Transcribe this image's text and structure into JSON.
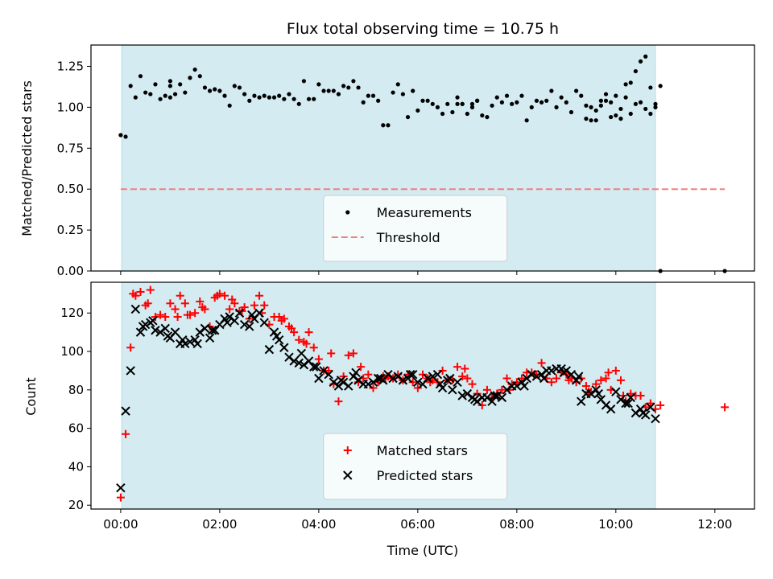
{
  "chart_data": {
    "title": "Flux total observing time = 10.75 h",
    "xlabel": "Time (UTC)",
    "x_unit": "hours UTC",
    "xlim": [
      -0.6,
      12.8
    ],
    "xticks": [
      0,
      2,
      4,
      6,
      8,
      10,
      12
    ],
    "xtick_labels": [
      "00:00",
      "02:00",
      "04:00",
      "06:00",
      "08:00",
      "10:00",
      "12:00"
    ],
    "shaded_span": [
      0.02,
      10.8
    ],
    "shade_color": "#d3ebf1",
    "panels": [
      {
        "id": "top",
        "type": "scatter",
        "ylabel": "Matched/Predicted stars",
        "ylim": [
          0.0,
          1.38
        ],
        "yticks": [
          0.0,
          0.25,
          0.5,
          0.75,
          1.0,
          1.25
        ],
        "ytick_labels": [
          "0.00",
          "0.25",
          "0.50",
          "0.75",
          "1.00",
          "1.25"
        ],
        "legend_position": "lower-center",
        "threshold": {
          "name": "Threshold",
          "value": 0.5,
          "x_range": [
            0.0,
            12.2
          ],
          "color": "#f08080",
          "style": "dashed"
        },
        "series": [
          {
            "name": "Measurements",
            "color": "#000000",
            "marker": "dot",
            "x": [
              0.0,
              0.1,
              0.2,
              0.3,
              0.4,
              0.5,
              0.6,
              0.7,
              0.8,
              0.9,
              1.0,
              1.1,
              1.2,
              1.3,
              1.4,
              1.5,
              1.6,
              1.7,
              1.8,
              1.9,
              2.0,
              2.1,
              2.2,
              2.3,
              2.4,
              2.5,
              2.6,
              2.7,
              2.8,
              2.9,
              3.0,
              3.1,
              3.2,
              3.3,
              3.4,
              3.5,
              3.6,
              3.7,
              3.8,
              3.9,
              4.0,
              4.1,
              4.2,
              4.3,
              4.4,
              4.5,
              4.6,
              4.7,
              4.8,
              4.9,
              5.0,
              5.1,
              5.2,
              5.3,
              5.4,
              5.5,
              5.6,
              5.7,
              5.8,
              5.9,
              6.0,
              6.1,
              6.2,
              6.3,
              6.4,
              6.5,
              6.6,
              6.7,
              6.8,
              6.9,
              7.0,
              7.1,
              7.2,
              7.3,
              7.4,
              7.5,
              7.6,
              7.7,
              7.8,
              7.9,
              8.0,
              8.1,
              8.2,
              8.3,
              8.4,
              8.5,
              8.6,
              8.7,
              8.8,
              8.9,
              9.0,
              9.1,
              9.2,
              9.3,
              9.4,
              9.5,
              9.6,
              9.7,
              9.8,
              9.9,
              10.0,
              10.1,
              10.2,
              10.3,
              10.4,
              10.5,
              10.6,
              10.7,
              10.8,
              10.9,
              12.2
            ],
            "y": [
              0.83,
              0.82,
              1.13,
              1.06,
              1.19,
              1.09,
              1.08,
              1.14,
              1.05,
              1.07,
              1.06,
              1.08,
              1.14,
              1.09,
              1.18,
              1.23,
              1.19,
              1.12,
              1.1,
              1.11,
              1.1,
              1.07,
              1.01,
              1.13,
              1.12,
              1.08,
              1.04,
              1.07,
              1.06,
              1.07,
              1.06,
              1.06,
              1.07,
              1.05,
              1.08,
              1.05,
              1.02,
              1.16,
              1.05,
              1.05,
              1.14,
              1.1,
              1.1,
              1.1,
              1.08,
              1.13,
              1.12,
              1.16,
              1.12,
              1.03,
              1.07,
              1.07,
              1.04,
              0.89,
              0.89,
              1.09,
              1.14,
              1.08,
              0.94,
              1.1,
              0.98,
              1.04,
              1.04,
              1.02,
              1.0,
              0.96,
              1.02,
              0.97,
              1.02,
              1.02,
              0.96,
              1.0,
              1.04,
              0.95,
              0.94,
              1.01,
              1.06,
              1.03,
              1.07,
              1.02,
              1.03,
              1.07,
              0.92,
              1.0,
              1.04,
              1.03,
              1.04,
              1.1,
              1.0,
              1.06,
              1.03,
              0.97,
              1.1,
              1.07,
              1.01,
              1.0,
              0.98,
              1.01,
              1.04,
              0.94,
              0.95,
              0.93,
              1.06,
              0.96,
              1.02,
              1.03,
              0.99,
              1.12,
              1.0,
              1.13,
              0.0
            ],
            "x_extra": [
              1.0,
              1.0,
              6.8,
              6.9,
              7.1,
              7.2,
              9.4,
              9.5,
              9.6,
              9.7,
              9.8,
              9.9,
              10.0,
              10.1,
              10.2,
              10.3,
              10.4,
              10.5,
              10.6,
              10.7,
              10.8,
              10.9
            ],
            "y_extra": [
              1.16,
              1.13,
              1.06,
              1.02,
              1.02,
              1.04,
              0.93,
              0.92,
              0.92,
              1.04,
              1.08,
              1.03,
              1.07,
              0.99,
              1.14,
              1.15,
              1.22,
              1.28,
              1.31,
              0.96,
              1.02,
              0.0
            ]
          }
        ]
      },
      {
        "id": "bottom",
        "type": "scatter",
        "ylabel": "Count",
        "ylim": [
          18,
          136
        ],
        "yticks": [
          20,
          40,
          60,
          80,
          100,
          120
        ],
        "ytick_labels": [
          "20",
          "40",
          "60",
          "80",
          "100",
          "120"
        ],
        "legend_position": "lower-center",
        "series": [
          {
            "name": "Matched stars",
            "color": "#ff0000",
            "marker": "plus",
            "x": [
              0.0,
              0.1,
              0.2,
              0.3,
              0.4,
              0.5,
              0.6,
              0.7,
              0.8,
              0.9,
              1.0,
              1.1,
              1.2,
              1.3,
              1.4,
              1.5,
              1.6,
              1.7,
              1.8,
              1.9,
              2.0,
              2.1,
              2.2,
              2.3,
              2.4,
              2.5,
              2.6,
              2.7,
              2.8,
              2.9,
              3.0,
              3.1,
              3.2,
              3.3,
              3.4,
              3.5,
              3.6,
              3.7,
              3.8,
              3.9,
              4.0,
              4.1,
              4.2,
              4.3,
              4.4,
              4.5,
              4.6,
              4.7,
              4.8,
              4.9,
              5.0,
              5.1,
              5.2,
              5.3,
              5.4,
              5.5,
              5.6,
              5.7,
              5.8,
              5.9,
              6.0,
              6.1,
              6.2,
              6.3,
              6.4,
              6.5,
              6.6,
              6.7,
              6.8,
              6.9,
              7.0,
              7.1,
              7.2,
              7.3,
              7.4,
              7.5,
              7.6,
              7.7,
              7.8,
              7.9,
              8.0,
              8.1,
              8.2,
              8.3,
              8.4,
              8.5,
              8.6,
              8.7,
              8.8,
              8.9,
              9.0,
              9.1,
              9.2,
              9.3,
              9.4,
              9.5,
              9.6,
              9.7,
              9.8,
              9.9,
              10.0,
              10.1,
              10.2,
              10.3,
              10.4,
              10.5,
              10.6,
              10.7,
              10.8,
              10.9,
              12.2
            ],
            "y": [
              24,
              57,
              102,
              129,
              131,
              124,
              132,
              118,
              119,
              118,
              125,
              122,
              129,
              125,
              119,
              120,
              126,
              122,
              113,
              128,
              130,
              129,
              122,
              125,
              121,
              123,
              117,
              124,
              129,
              124,
              114,
              118,
              118,
              117,
              113,
              110,
              106,
              105,
              110,
              102,
              96,
              90,
              90,
              83,
              74,
              87,
              98,
              99,
              84,
              86,
              88,
              81,
              84,
              87,
              87,
              86,
              88,
              85,
              88,
              84,
              81,
              88,
              86,
              85,
              84,
              90,
              85,
              85,
              92,
              87,
              86,
              83,
              78,
              72,
              80,
              76,
              78,
              80,
              86,
              83,
              84,
              86,
              89,
              89,
              88,
              94,
              86,
              84,
              86,
              89,
              88,
              86,
              84,
              86,
              82,
              79,
              83,
              85,
              86,
              80,
              90,
              85,
              74,
              78,
              77,
              77,
              71,
              73,
              70,
              72,
              71
            ],
            "x_extra": [
              0.25,
              0.55,
              1.15,
              1.35,
              1.65,
              1.95,
              2.25,
              2.45,
              2.85,
              3.25,
              3.45,
              3.75,
              4.25,
              4.85,
              5.35,
              6.25,
              6.95,
              7.85,
              8.35,
              9.05,
              9.45,
              9.85,
              10.15
            ],
            "y_extra": [
              130,
              125,
              118,
              119,
              123,
              129,
              127,
              121,
              120,
              116,
              112,
              104,
              99,
              92,
              86,
              84,
              91,
              80,
              88,
              85,
              79,
              89,
              77
            ]
          },
          {
            "name": "Predicted stars",
            "color": "#000000",
            "marker": "x",
            "x": [
              0.0,
              0.1,
              0.2,
              0.3,
              0.4,
              0.5,
              0.6,
              0.7,
              0.8,
              0.9,
              1.0,
              1.1,
              1.2,
              1.3,
              1.4,
              1.5,
              1.6,
              1.7,
              1.8,
              1.9,
              2.0,
              2.1,
              2.2,
              2.3,
              2.4,
              2.5,
              2.6,
              2.7,
              2.8,
              2.9,
              3.0,
              3.1,
              3.2,
              3.3,
              3.4,
              3.5,
              3.6,
              3.7,
              3.8,
              3.9,
              4.0,
              4.1,
              4.2,
              4.3,
              4.4,
              4.5,
              4.6,
              4.7,
              4.8,
              4.9,
              5.0,
              5.1,
              5.2,
              5.3,
              5.4,
              5.5,
              5.6,
              5.7,
              5.8,
              5.9,
              6.0,
              6.1,
              6.2,
              6.3,
              6.4,
              6.5,
              6.6,
              6.7,
              6.8,
              6.9,
              7.0,
              7.1,
              7.2,
              7.3,
              7.4,
              7.5,
              7.6,
              7.7,
              7.8,
              7.9,
              8.0,
              8.1,
              8.2,
              8.3,
              8.4,
              8.5,
              8.6,
              8.7,
              8.8,
              8.9,
              9.0,
              9.1,
              9.2,
              9.3,
              9.4,
              9.5,
              9.6,
              9.7,
              9.8,
              9.9,
              10.0,
              10.1,
              10.2,
              10.3,
              10.4,
              10.5,
              10.6,
              10.7,
              10.8
            ],
            "y": [
              29,
              69,
              90,
              122,
              110,
              114,
              115,
              111,
              110,
              112,
              107,
              110,
              104,
              104,
              105,
              106,
              110,
              112,
              107,
              111,
              114,
              117,
              118,
              116,
              120,
              114,
              113,
              117,
              120,
              115,
              101,
              110,
              106,
              102,
              97,
              95,
              94,
              93,
              95,
              92,
              86,
              90,
              88,
              84,
              82,
              84,
              82,
              87,
              85,
              83,
              83,
              84,
              86,
              85,
              88,
              86,
              87,
              85,
              86,
              88,
              84,
              83,
              86,
              87,
              88,
              81,
              85,
              80,
              84,
              77,
              78,
              76,
              74,
              76,
              76,
              74,
              77,
              76,
              80,
              82,
              82,
              84,
              86,
              88,
              87,
              88,
              90,
              90,
              91,
              91,
              90,
              88,
              85,
              74,
              78,
              78,
              80,
              75,
              72,
              70,
              79,
              75,
              73,
              76,
              68,
              70,
              67,
              71,
              65
            ],
            "x_extra": [
              0.45,
              0.65,
              0.95,
              1.25,
              1.55,
              1.85,
              2.15,
              2.65,
              3.15,
              3.65,
              3.95,
              4.45,
              4.75,
              5.25,
              5.85,
              6.45,
              6.65,
              7.15,
              7.55,
              8.15,
              8.55,
              8.95,
              9.25,
              9.65,
              10.25,
              10.55
            ],
            "y_extra": [
              113,
              116,
              108,
              106,
              104,
              111,
              115,
              119,
              108,
              99,
              92,
              85,
              89,
              86,
              88,
              83,
              86,
              75,
              77,
              82,
              86,
              89,
              87,
              78,
              73,
              68
            ]
          }
        ]
      }
    ]
  }
}
